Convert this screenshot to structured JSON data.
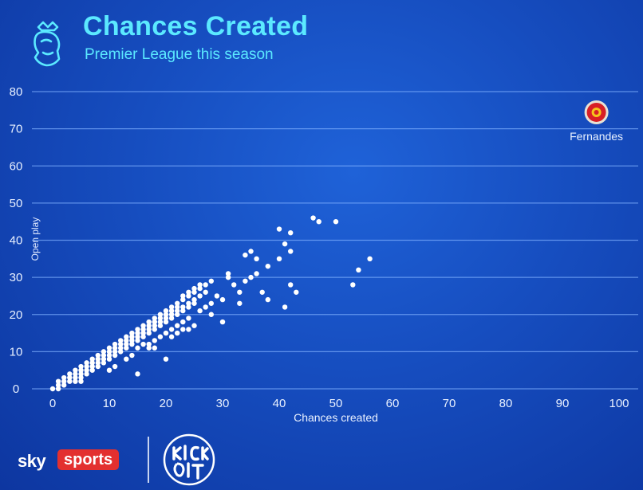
{
  "header": {
    "title": "Chances Created",
    "subtitle": "Premier League this season",
    "logo_icon": "premier-league-lion-icon"
  },
  "chart_data": {
    "type": "scatter",
    "title": "Chances Created",
    "subtitle": "Premier League this season",
    "xlabel": "Chances created",
    "ylabel": "Open play",
    "xlim": [
      0,
      100
    ],
    "ylim": [
      0,
      80
    ],
    "x_ticks": [
      "0",
      "10",
      "20",
      "30",
      "40",
      "50",
      "60",
      "70",
      "80",
      "90",
      "100"
    ],
    "y_ticks": [
      "0",
      "10",
      "20",
      "30",
      "40",
      "50",
      "60",
      "70",
      "80"
    ],
    "grid": "horizontal",
    "highlight": {
      "label": "Fernandes",
      "x": 96,
      "y": 74,
      "icon": "manchester-united-crest-icon"
    },
    "points": [
      [
        0,
        0
      ],
      [
        1,
        1
      ],
      [
        1,
        0
      ],
      [
        2,
        1
      ],
      [
        2,
        2
      ],
      [
        3,
        2
      ],
      [
        3,
        3
      ],
      [
        4,
        3
      ],
      [
        4,
        4
      ],
      [
        5,
        4
      ],
      [
        5,
        5
      ],
      [
        5,
        3
      ],
      [
        6,
        5
      ],
      [
        6,
        6
      ],
      [
        7,
        6
      ],
      [
        7,
        7
      ],
      [
        8,
        7
      ],
      [
        8,
        8
      ],
      [
        9,
        8
      ],
      [
        9,
        9
      ],
      [
        10,
        9
      ],
      [
        10,
        10
      ],
      [
        11,
        10
      ],
      [
        11,
        11
      ],
      [
        12,
        11
      ],
      [
        12,
        12
      ],
      [
        13,
        12
      ],
      [
        13,
        13
      ],
      [
        14,
        13
      ],
      [
        14,
        14
      ],
      [
        15,
        14
      ],
      [
        15,
        15
      ],
      [
        16,
        15
      ],
      [
        16,
        16
      ],
      [
        17,
        17
      ],
      [
        17,
        18
      ],
      [
        18,
        18
      ],
      [
        18,
        19
      ],
      [
        19,
        19
      ],
      [
        19,
        20
      ],
      [
        20,
        20
      ],
      [
        20,
        21
      ],
      [
        21,
        21
      ],
      [
        21,
        22
      ],
      [
        22,
        22
      ],
      [
        22,
        23
      ],
      [
        23,
        24
      ],
      [
        23,
        25
      ],
      [
        24,
        25
      ],
      [
        24,
        26
      ],
      [
        25,
        26
      ],
      [
        25,
        27
      ],
      [
        26,
        27
      ],
      [
        26,
        28
      ],
      [
        1,
        2
      ],
      [
        2,
        3
      ],
      [
        3,
        4
      ],
      [
        4,
        2
      ],
      [
        4,
        5
      ],
      [
        5,
        6
      ],
      [
        6,
        4
      ],
      [
        6,
        7
      ],
      [
        7,
        5
      ],
      [
        7,
        8
      ],
      [
        8,
        6
      ],
      [
        8,
        9
      ],
      [
        9,
        7
      ],
      [
        9,
        10
      ],
      [
        10,
        8
      ],
      [
        10,
        11
      ],
      [
        11,
        9
      ],
      [
        11,
        12
      ],
      [
        12,
        10
      ],
      [
        12,
        13
      ],
      [
        13,
        11
      ],
      [
        13,
        14
      ],
      [
        14,
        12
      ],
      [
        14,
        15
      ],
      [
        15,
        13
      ],
      [
        15,
        16
      ],
      [
        16,
        14
      ],
      [
        16,
        17
      ],
      [
        17,
        15
      ],
      [
        17,
        16
      ],
      [
        18,
        16
      ],
      [
        18,
        17
      ],
      [
        19,
        17
      ],
      [
        19,
        18
      ],
      [
        20,
        18
      ],
      [
        20,
        19
      ],
      [
        21,
        19
      ],
      [
        21,
        20
      ],
      [
        22,
        20
      ],
      [
        22,
        21
      ],
      [
        23,
        21
      ],
      [
        23,
        22
      ],
      [
        24,
        22
      ],
      [
        24,
        23
      ],
      [
        25,
        24
      ],
      [
        25,
        23
      ],
      [
        26,
        25
      ],
      [
        27,
        26
      ],
      [
        27,
        28
      ],
      [
        5,
        2
      ],
      [
        10,
        5
      ],
      [
        11,
        6
      ],
      [
        13,
        8
      ],
      [
        14,
        9
      ],
      [
        15,
        11
      ],
      [
        16,
        12
      ],
      [
        17,
        12
      ],
      [
        18,
        13
      ],
      [
        18,
        11
      ],
      [
        19,
        14
      ],
      [
        20,
        15
      ],
      [
        21,
        16
      ],
      [
        22,
        17
      ],
      [
        23,
        18
      ],
      [
        24,
        19
      ],
      [
        26,
        21
      ],
      [
        27,
        22
      ],
      [
        28,
        23
      ],
      [
        15,
        4
      ],
      [
        20,
        8
      ],
      [
        17,
        11
      ],
      [
        21,
        14
      ],
      [
        22,
        15
      ],
      [
        25,
        17
      ],
      [
        23,
        16
      ],
      [
        24,
        16
      ],
      [
        28,
        29
      ],
      [
        28,
        20
      ],
      [
        29,
        25
      ],
      [
        30,
        18
      ],
      [
        30,
        24
      ],
      [
        31,
        31
      ],
      [
        31,
        30
      ],
      [
        32,
        28
      ],
      [
        33,
        23
      ],
      [
        33,
        26
      ],
      [
        34,
        29
      ],
      [
        34,
        36
      ],
      [
        35,
        37
      ],
      [
        35,
        30
      ],
      [
        36,
        35
      ],
      [
        36,
        31
      ],
      [
        37,
        26
      ],
      [
        38,
        24
      ],
      [
        38,
        33
      ],
      [
        40,
        35
      ],
      [
        40,
        43
      ],
      [
        41,
        22
      ],
      [
        41,
        39
      ],
      [
        42,
        37
      ],
      [
        42,
        28
      ],
      [
        42,
        42
      ],
      [
        43,
        26
      ],
      [
        46,
        46
      ],
      [
        47,
        45
      ],
      [
        50,
        45
      ],
      [
        53,
        28
      ],
      [
        54,
        32
      ],
      [
        56,
        35
      ]
    ]
  },
  "footer": {
    "sky_label": "sky",
    "sports_label": "sports",
    "kick_it_out_logo": "kick-it-out-logo-icon"
  }
}
